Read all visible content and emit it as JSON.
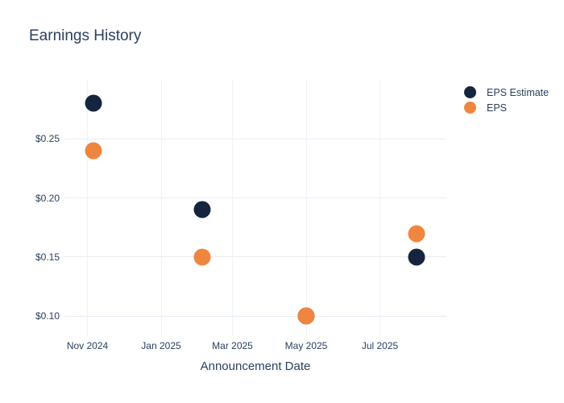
{
  "title": "Earnings History",
  "colors": {
    "eps_estimate": "#15253f",
    "eps": "#f0853f",
    "grid": "#e7edf4",
    "text": "#2a3f5f",
    "background": "#ffffff"
  },
  "legend": {
    "items": [
      {
        "label": "EPS Estimate",
        "color": "#15253f"
      },
      {
        "label": "EPS",
        "color": "#f0853f"
      }
    ]
  },
  "chart_data": {
    "type": "scatter",
    "title": "Earnings History",
    "xlabel": "Announcement Date",
    "ylabel": "",
    "grid": true,
    "legend_position": "outside-top-right",
    "day_epoch": "2024-10-01",
    "x_range_days": [
      12,
      328
    ],
    "y_range": [
      0.083,
      0.3
    ],
    "x_ticks": [
      {
        "label": "Nov 2024",
        "day": 31
      },
      {
        "label": "Jan 2025",
        "day": 92
      },
      {
        "label": "Mar 2025",
        "day": 151
      },
      {
        "label": "May 2025",
        "day": 212
      },
      {
        "label": "Jul 2025",
        "day": 273
      }
    ],
    "y_ticks": [
      {
        "label": "$0.25",
        "value": 0.25
      },
      {
        "label": "$0.20",
        "value": 0.2
      },
      {
        "label": "$0.15",
        "value": 0.15
      },
      {
        "label": "$0.10",
        "value": 0.1
      }
    ],
    "series": [
      {
        "name": "EPS Estimate",
        "color": "#15253f",
        "points": [
          {
            "date": "2024-11-06",
            "day": 36,
            "value": 0.28
          },
          {
            "date": "2025-02-04",
            "day": 126,
            "value": 0.19
          },
          {
            "date": "2025-05-01",
            "day": 212,
            "value": 0.1
          },
          {
            "date": "2025-07-31",
            "day": 303,
            "value": 0.15
          }
        ]
      },
      {
        "name": "EPS",
        "color": "#f0853f",
        "points": [
          {
            "date": "2024-11-06",
            "day": 36,
            "value": 0.24
          },
          {
            "date": "2025-02-04",
            "day": 126,
            "value": 0.15
          },
          {
            "date": "2025-05-01",
            "day": 212,
            "value": 0.1
          },
          {
            "date": "2025-07-31",
            "day": 303,
            "value": 0.17
          }
        ]
      }
    ]
  }
}
